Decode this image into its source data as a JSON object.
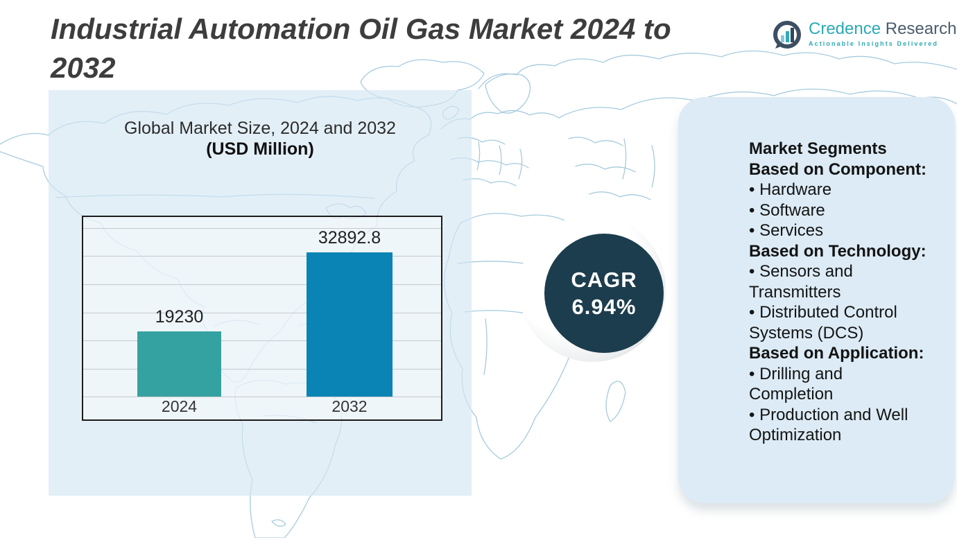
{
  "header": {
    "title_full": "Industrial Automation Oil Gas Market 2024 to 2032",
    "title_lines": [
      "Industrial Automation Oil Gas Market 2024 to",
      "2032"
    ]
  },
  "logo": {
    "brand_word1": "Credence",
    "brand_word2": "Research",
    "tagline": "Actionable Insights Delivered",
    "icon": "bar-chart-speech-bubble-icon",
    "teal": "#2baab5",
    "slate": "#4b5c6b"
  },
  "chart_data": {
    "type": "bar",
    "title": "Global Market Size, 2024 and 2032",
    "subtitle": "(USD Million)",
    "categories": [
      "2024",
      "2032"
    ],
    "values": [
      19230,
      32892.8
    ],
    "value_labels": [
      "19230",
      "32892.8"
    ],
    "bar_colors": [
      "#35a2a2",
      "#0a84b5"
    ],
    "xlabel": "",
    "ylabel": "",
    "ylim": [
      8000,
      37000
    ],
    "gridline_count": 7,
    "grid": true,
    "legend": false
  },
  "cagr": {
    "label": "CAGR",
    "value": "6.94%",
    "circle_color": "#1c3d4d"
  },
  "segments": {
    "lines": [
      {
        "text": "Market Segments",
        "bold": true
      },
      {
        "text": "Based on Component:",
        "bold": true
      },
      {
        "text": "• Hardware",
        "bold": false
      },
      {
        "text": "• Software",
        "bold": false
      },
      {
        "text": "• Services",
        "bold": false
      },
      {
        "text": "Based on Technology:",
        "bold": true
      },
      {
        "text": "• Sensors and",
        "bold": false
      },
      {
        "text": "Transmitters",
        "bold": false
      },
      {
        "text": "• Distributed Control",
        "bold": false
      },
      {
        "text": "Systems (DCS)",
        "bold": false
      },
      {
        "text": "Based on Application:",
        "bold": true
      },
      {
        "text": "• Drilling and",
        "bold": false
      },
      {
        "text": "Completion",
        "bold": false
      },
      {
        "text": "• Production and Well",
        "bold": false
      },
      {
        "text": "Optimization",
        "bold": false
      }
    ]
  },
  "colors": {
    "accent_teal": "#35a2a2",
    "accent_blue": "#0a84b5",
    "cagr_circle": "#1c3d4d",
    "panel_bg": "#dcebf5",
    "backdrop_bg": "#e7f0f7",
    "map_stroke": "#a6cadd",
    "title_text": "#3d3d3d"
  }
}
